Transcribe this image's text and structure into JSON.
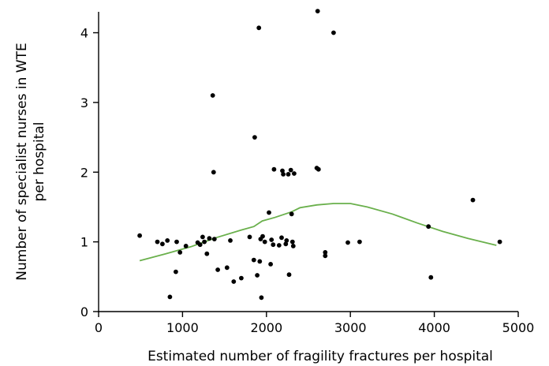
{
  "chart_data": {
    "type": "scatter",
    "xlabel": "Estimated number of fragility fractures per hospital",
    "ylabel_lines": [
      "Number of specialist nurses in WTE",
      "per hospital"
    ],
    "xlim": [
      0,
      5000
    ],
    "ylim": [
      0,
      4.3
    ],
    "x_ticks": [
      0,
      1000,
      2000,
      3000,
      4000,
      5000
    ],
    "y_ticks": [
      0,
      1,
      2,
      3,
      4
    ],
    "grid": false,
    "colors": {
      "points": "#000000",
      "trend": "#6ab04c"
    },
    "series": [
      {
        "type": "scatter",
        "points": [
          [
            490,
            1.09
          ],
          [
            700,
            1.0
          ],
          [
            760,
            0.97
          ],
          [
            820,
            1.02
          ],
          [
            850,
            0.21
          ],
          [
            920,
            0.57
          ],
          [
            930,
            1.0
          ],
          [
            970,
            0.85
          ],
          [
            1040,
            0.94
          ],
          [
            1180,
            0.99
          ],
          [
            1210,
            0.96
          ],
          [
            1240,
            1.07
          ],
          [
            1260,
            1.0
          ],
          [
            1290,
            0.83
          ],
          [
            1320,
            1.05
          ],
          [
            1360,
            3.1
          ],
          [
            1370,
            2.0
          ],
          [
            1380,
            1.04
          ],
          [
            1420,
            0.6
          ],
          [
            1530,
            0.63
          ],
          [
            1570,
            1.02
          ],
          [
            1610,
            0.43
          ],
          [
            1700,
            0.48
          ],
          [
            1800,
            1.07
          ],
          [
            1850,
            0.74
          ],
          [
            1860,
            2.5
          ],
          [
            1890,
            0.52
          ],
          [
            1910,
            4.07
          ],
          [
            1920,
            0.72
          ],
          [
            1930,
            1.04
          ],
          [
            1940,
            0.2
          ],
          [
            1955,
            1.08
          ],
          [
            1980,
            1.0
          ],
          [
            2030,
            1.42
          ],
          [
            2050,
            0.68
          ],
          [
            2060,
            1.03
          ],
          [
            2080,
            0.96
          ],
          [
            2090,
            2.04
          ],
          [
            2150,
            0.95
          ],
          [
            2180,
            1.06
          ],
          [
            2190,
            2.02
          ],
          [
            2200,
            1.97
          ],
          [
            2230,
            0.97
          ],
          [
            2240,
            1.02
          ],
          [
            2260,
            1.97
          ],
          [
            2270,
            0.53
          ],
          [
            2290,
            2.03
          ],
          [
            2300,
            1.4
          ],
          [
            2310,
            1.0
          ],
          [
            2320,
            0.94
          ],
          [
            2330,
            1.98
          ],
          [
            2600,
            2.06
          ],
          [
            2610,
            4.31
          ],
          [
            2620,
            2.04
          ],
          [
            2700,
            0.85
          ],
          [
            2700,
            0.8
          ],
          [
            2800,
            4.0
          ],
          [
            2970,
            0.99
          ],
          [
            3110,
            1.0
          ],
          [
            3930,
            1.22
          ],
          [
            3960,
            0.49
          ],
          [
            4460,
            1.6
          ],
          [
            4780,
            1.0
          ]
        ]
      },
      {
        "type": "line",
        "points": [
          [
            490,
            0.73
          ],
          [
            800,
            0.83
          ],
          [
            1100,
            0.93
          ],
          [
            1400,
            1.06
          ],
          [
            1700,
            1.17
          ],
          [
            1850,
            1.22
          ],
          [
            1950,
            1.3
          ],
          [
            2100,
            1.35
          ],
          [
            2300,
            1.43
          ],
          [
            2400,
            1.49
          ],
          [
            2600,
            1.53
          ],
          [
            2800,
            1.55
          ],
          [
            3000,
            1.55
          ],
          [
            3200,
            1.5
          ],
          [
            3500,
            1.4
          ],
          [
            3800,
            1.27
          ],
          [
            4100,
            1.15
          ],
          [
            4400,
            1.05
          ],
          [
            4740,
            0.95
          ]
        ]
      }
    ]
  }
}
